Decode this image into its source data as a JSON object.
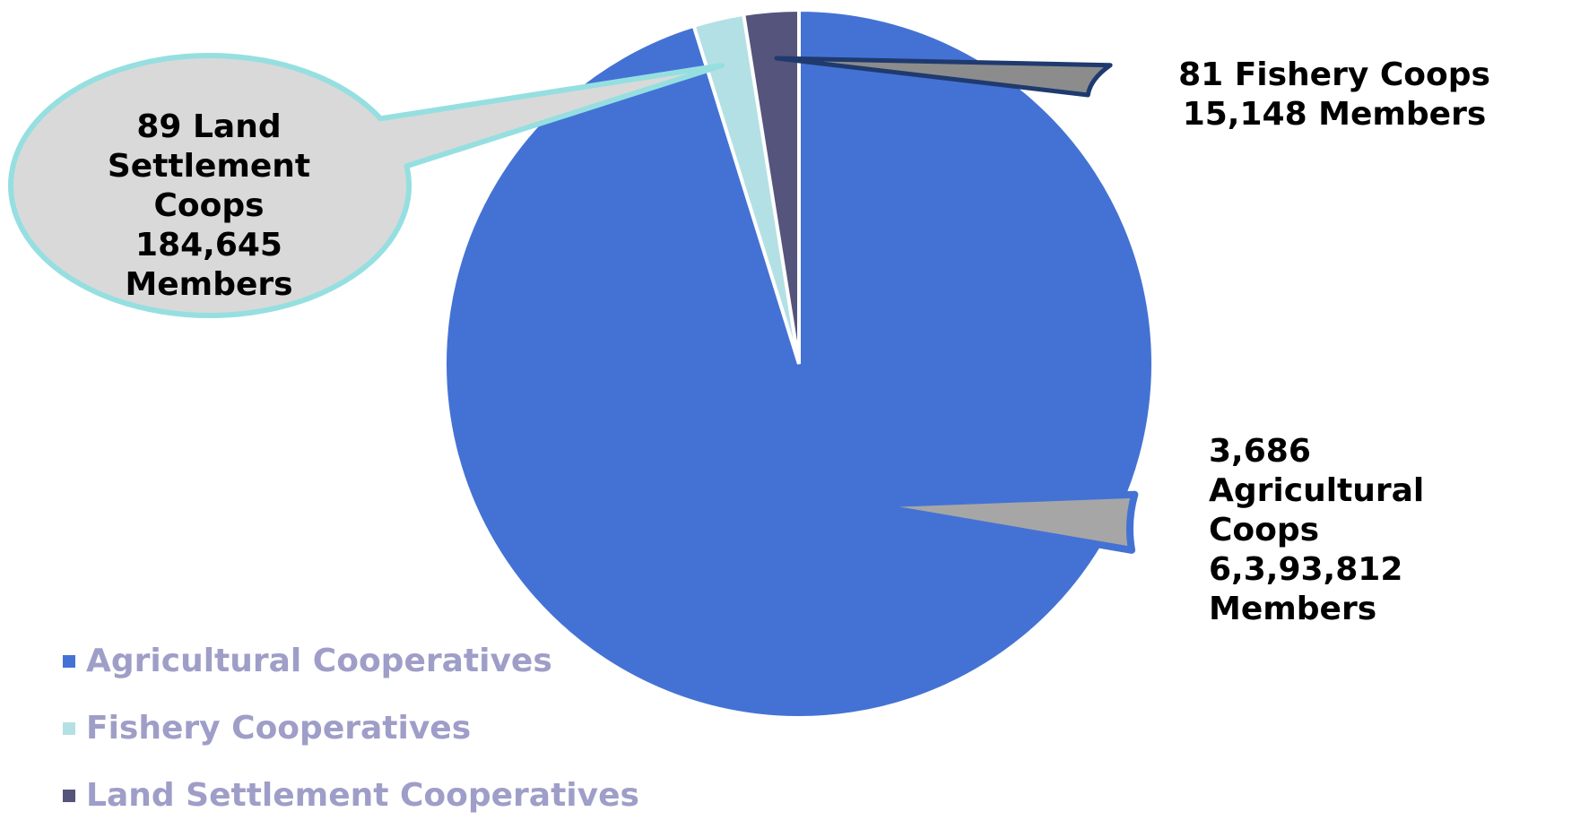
{
  "chart_data": {
    "type": "pie",
    "categories": [
      "Agricultural Cooperatives",
      "Fishery Cooperatives",
      "Land Settlement Cooperatives"
    ],
    "values": [
      95.2,
      2.3,
      2.5
    ],
    "colors": [
      "#4472d4",
      "#b3e0e5",
      "#55547c"
    ],
    "start_angle_deg": -90,
    "legend_position": "bottom-left",
    "annotations": [
      {
        "series": "Agricultural Cooperatives",
        "lines": [
          "3,686",
          "Agricultural",
          "Coops",
          "6,3,93,812",
          "Members"
        ],
        "fill": "#a6a6a6",
        "stroke": "#4472d4"
      },
      {
        "series": "Land Settlement Cooperatives",
        "lines": [
          "81 Fishery Coops",
          "15,148 Members"
        ],
        "fill": "#8c8c8c",
        "stroke": "#1f3a6e"
      },
      {
        "series": "Fishery Cooperatives",
        "lines": [
          "89 Land",
          "Settlement",
          "Coops",
          "184,645",
          "Members"
        ],
        "fill": "#d9d9d9",
        "stroke": "#96dfe1"
      }
    ]
  },
  "legend": {
    "items": [
      {
        "label": "Agricultural Cooperatives",
        "color": "#4472d4"
      },
      {
        "label": "Fishery Cooperatives",
        "color": "#b3e0e5"
      },
      {
        "label": "Land Settlement Cooperatives",
        "color": "#55547c"
      }
    ]
  }
}
